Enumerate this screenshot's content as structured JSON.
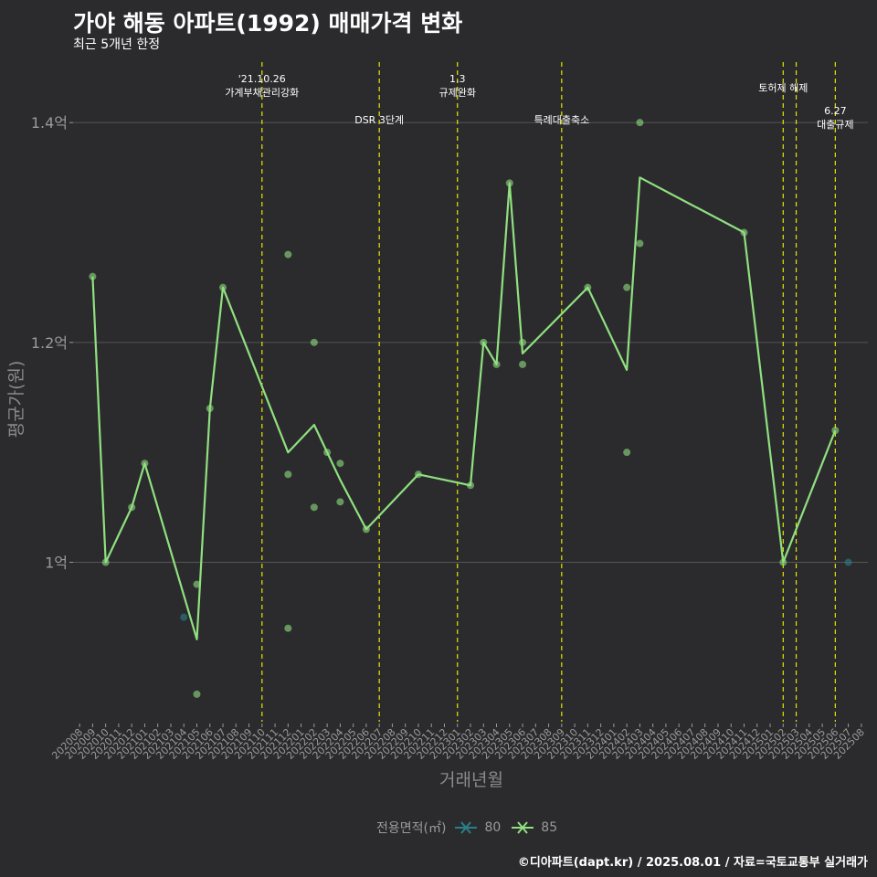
{
  "header": {
    "title": "가야 해동 아파트(1992) 매매가격 변화",
    "subtitle": "최근 5개년 한정"
  },
  "caption": "©디아파트(dapt.kr) / 2025.08.01 / 자료=국토교통부 실거래가",
  "colors": {
    "background": "#2b2b2d",
    "grid": "#555555",
    "event_line": "#e6e600",
    "series_80": "#2a7f8a",
    "series_85": "#90e080"
  },
  "chart_data": {
    "type": "line",
    "xlabel": "거래년월",
    "ylabel": "평균가(원)",
    "ylim": [
      0.855,
      1.455
    ],
    "yticks": [
      {
        "value": 1.0,
        "label": "1억"
      },
      {
        "value": 1.2,
        "label": "1.2억"
      },
      {
        "value": 1.4,
        "label": "1.4억"
      }
    ],
    "categories": [
      "202008",
      "202009",
      "202010",
      "202011",
      "202012",
      "202101",
      "202102",
      "202103",
      "202104",
      "202105",
      "202106",
      "202107",
      "202108",
      "202109",
      "202110",
      "202111",
      "202112",
      "202201",
      "202202",
      "202203",
      "202204",
      "202205",
      "202206",
      "202207",
      "202208",
      "202209",
      "202210",
      "202211",
      "202212",
      "202301",
      "202302",
      "202303",
      "202304",
      "202305",
      "202306",
      "202307",
      "202308",
      "202309",
      "202310",
      "202311",
      "202312",
      "202401",
      "202402",
      "202403",
      "202404",
      "202405",
      "202406",
      "202407",
      "202408",
      "202409",
      "202410",
      "202411",
      "202412",
      "202501",
      "202502",
      "202503",
      "202504",
      "202505",
      "202506",
      "202507",
      "202508"
    ],
    "legend": {
      "title": "전용면적(㎡)",
      "items": [
        "80",
        "85"
      ],
      "placement": "bottom"
    },
    "series": [
      {
        "name": "85",
        "line": [
          [
            "202009",
            1.26
          ],
          [
            "202010",
            1.0
          ],
          [
            "202012",
            1.05
          ],
          [
            "202101",
            1.09
          ],
          [
            "202105",
            0.93
          ],
          [
            "202106",
            1.14
          ],
          [
            "202107",
            1.25
          ],
          [
            "202112",
            1.1
          ],
          [
            "202202",
            1.125
          ],
          [
            "202204",
            1.075
          ],
          [
            "202206",
            1.03
          ],
          [
            "202210",
            1.08
          ],
          [
            "202302",
            1.07
          ],
          [
            "202303",
            1.2
          ],
          [
            "202304",
            1.18
          ],
          [
            "202305",
            1.345
          ],
          [
            "202306",
            1.19
          ],
          [
            "202311",
            1.25
          ],
          [
            "202402",
            1.175
          ],
          [
            "202403",
            1.35
          ],
          [
            "202411",
            1.3
          ],
          [
            "202502",
            1.0
          ],
          [
            "202506",
            1.12
          ]
        ],
        "points": [
          [
            "202009",
            1.26
          ],
          [
            "202010",
            1.0
          ],
          [
            "202012",
            1.05
          ],
          [
            "202101",
            1.09
          ],
          [
            "202105",
            0.98
          ],
          [
            "202105",
            0.88
          ],
          [
            "202106",
            1.14
          ],
          [
            "202107",
            1.25
          ],
          [
            "202112",
            1.28
          ],
          [
            "202112",
            1.08
          ],
          [
            "202112",
            0.94
          ],
          [
            "202202",
            1.2
          ],
          [
            "202202",
            1.05
          ],
          [
            "202203",
            1.1
          ],
          [
            "202204",
            1.09
          ],
          [
            "202204",
            1.055
          ],
          [
            "202206",
            1.03
          ],
          [
            "202210",
            1.08
          ],
          [
            "202302",
            1.07
          ],
          [
            "202303",
            1.2
          ],
          [
            "202304",
            1.18
          ],
          [
            "202305",
            1.345
          ],
          [
            "202306",
            1.2
          ],
          [
            "202306",
            1.18
          ],
          [
            "202311",
            1.25
          ],
          [
            "202402",
            1.25
          ],
          [
            "202402",
            1.1
          ],
          [
            "202403",
            1.4
          ],
          [
            "202403",
            1.29
          ],
          [
            "202411",
            1.3
          ],
          [
            "202502",
            1.0
          ],
          [
            "202506",
            1.12
          ]
        ]
      },
      {
        "name": "80",
        "points": [
          [
            "202104",
            0.95
          ],
          [
            "202507",
            1.0
          ]
        ]
      }
    ],
    "events": [
      {
        "date": "202110",
        "lines": [
          "'21.10.26",
          "가계부채관리강화"
        ],
        "row": 0
      },
      {
        "date": "202207",
        "lines": [
          "DSR 3단계"
        ],
        "row": 2
      },
      {
        "date": "202301",
        "lines": [
          "1.3",
          "규제완화"
        ],
        "row": 0
      },
      {
        "date": "202309",
        "lines": [
          "특례대출축소"
        ],
        "row": 2
      },
      {
        "date": "202502",
        "lines": [
          "토허제 해제"
        ],
        "row": 1
      },
      {
        "date": "202503",
        "lines": [],
        "row": 1
      },
      {
        "date": "202506",
        "lines": [
          "6.27",
          "대출규제"
        ],
        "row": 3
      }
    ]
  }
}
